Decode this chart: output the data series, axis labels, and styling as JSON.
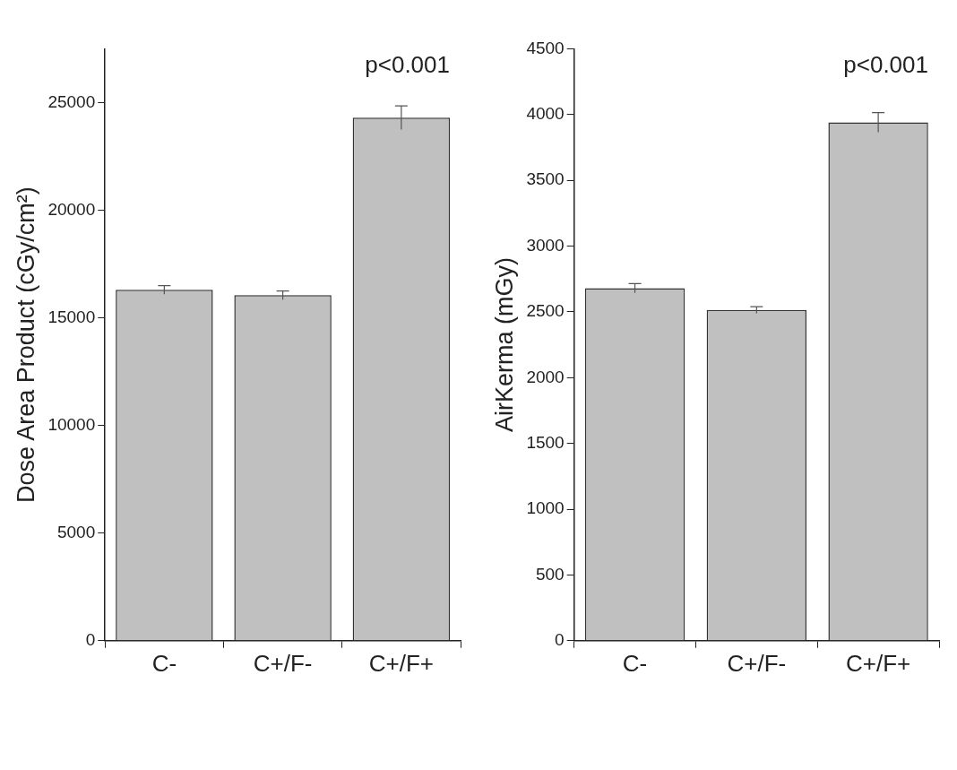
{
  "chart_data": [
    {
      "type": "bar",
      "ylabel": "Dose Area Product (cGy/cm²)",
      "categories": [
        "C-",
        "C+/F-",
        "C+/F+"
      ],
      "values": [
        16300,
        16050,
        24300
      ],
      "errors": [
        200,
        200,
        550
      ],
      "color": "#c0c0c0",
      "ylim": [
        0,
        27500
      ],
      "yticks": [
        0,
        5000,
        10000,
        15000,
        20000,
        25000
      ],
      "grid": false,
      "legend": false,
      "annotations": [
        "p<0.001"
      ]
    },
    {
      "type": "bar",
      "ylabel": "AirKerma (mGy)",
      "categories": [
        "C-",
        "C+/F-",
        "C+/F+"
      ],
      "values": [
        2680,
        2515,
        3940
      ],
      "errors": [
        35,
        25,
        75
      ],
      "color": "#c0c0c0",
      "ylim": [
        0,
        4500
      ],
      "yticks": [
        0,
        500,
        1000,
        1500,
        2000,
        2500,
        3000,
        3500,
        4000,
        4500
      ],
      "grid": false,
      "legend": false,
      "annotations": [
        "p<0.001"
      ]
    }
  ]
}
